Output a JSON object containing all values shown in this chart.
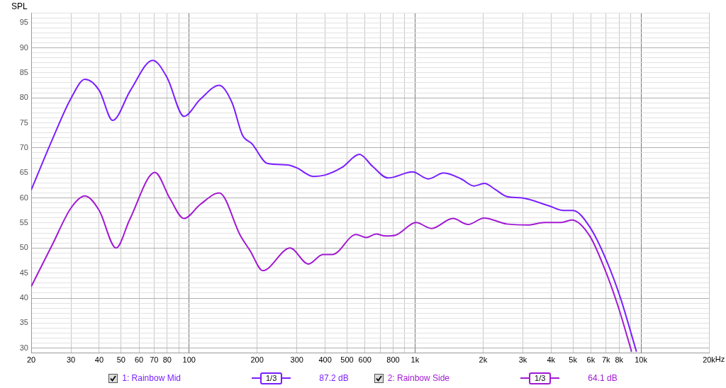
{
  "chart_data": {
    "type": "line",
    "ylabel": "SPL",
    "xlabel": "Hz",
    "log": "x",
    "grid": true,
    "legend": "bottom",
    "marker": "none",
    "line_style": "solid",
    "xlim": [
      20,
      20000
    ],
    "ylim": [
      29,
      97
    ],
    "xticks": [
      20,
      30,
      40,
      50,
      60,
      70,
      80,
      {
        "value": 90,
        "label": null
      },
      100,
      200,
      300,
      400,
      500,
      600,
      {
        "value": 700,
        "label": null
      },
      800,
      {
        "value": 900,
        "label": null
      },
      {
        "value": 1000,
        "label": "1k"
      },
      {
        "value": 2000,
        "label": "2k"
      },
      {
        "value": 3000,
        "label": "3k"
      },
      {
        "value": 4000,
        "label": "4k"
      },
      {
        "value": 5000,
        "label": "5k"
      },
      {
        "value": 6000,
        "label": "6k"
      },
      {
        "value": 7000,
        "label": "7k"
      },
      {
        "value": 8000,
        "label": "8k"
      },
      {
        "value": 9000,
        "label": null
      },
      {
        "value": 10000,
        "label": "10k"
      },
      {
        "value": 20000,
        "label": "20k"
      }
    ],
    "yticks": [
      {
        "value": 29,
        "label": null
      },
      30,
      {
        "value": 31,
        "label": null
      },
      {
        "value": 32,
        "label": null
      },
      {
        "value": 33,
        "label": null
      },
      {
        "value": 34,
        "label": null
      },
      35,
      {
        "value": 36,
        "label": null
      },
      {
        "value": 37,
        "label": null
      },
      {
        "value": 38,
        "label": null
      },
      {
        "value": 39,
        "label": null
      },
      40,
      {
        "value": 41,
        "label": null
      },
      {
        "value": 42,
        "label": null
      },
      {
        "value": 43,
        "label": null
      },
      {
        "value": 44,
        "label": null
      },
      45,
      {
        "value": 46,
        "label": null
      },
      {
        "value": 47,
        "label": null
      },
      {
        "value": 48,
        "label": null
      },
      {
        "value": 49,
        "label": null
      },
      50,
      {
        "value": 51,
        "label": null
      },
      {
        "value": 52,
        "label": null
      },
      {
        "value": 53,
        "label": null
      },
      {
        "value": 54,
        "label": null
      },
      55,
      {
        "value": 56,
        "label": null
      },
      {
        "value": 57,
        "label": null
      },
      {
        "value": 58,
        "label": null
      },
      {
        "value": 59,
        "label": null
      },
      60,
      {
        "value": 61,
        "label": null
      },
      {
        "value": 62,
        "label": null
      },
      {
        "value": 63,
        "label": null
      },
      {
        "value": 64,
        "label": null
      },
      65,
      {
        "value": 66,
        "label": null
      },
      {
        "value": 67,
        "label": null
      },
      {
        "value": 68,
        "label": null
      },
      {
        "value": 69,
        "label": null
      },
      70,
      {
        "value": 71,
        "label": null
      },
      {
        "value": 72,
        "label": null
      },
      {
        "value": 73,
        "label": null
      },
      {
        "value": 74,
        "label": null
      },
      75,
      {
        "value": 76,
        "label": null
      },
      {
        "value": 77,
        "label": null
      },
      {
        "value": 78,
        "label": null
      },
      {
        "value": 79,
        "label": null
      },
      80,
      {
        "value": 81,
        "label": null
      },
      {
        "value": 82,
        "label": null
      },
      {
        "value": 83,
        "label": null
      },
      {
        "value": 84,
        "label": null
      },
      85,
      {
        "value": 86,
        "label": null
      },
      {
        "value": 87,
        "label": null
      },
      {
        "value": 88,
        "label": null
      },
      {
        "value": 89,
        "label": null
      },
      90,
      {
        "value": 91,
        "label": null
      },
      {
        "value": 92,
        "label": null
      },
      {
        "value": 93,
        "label": null
      },
      {
        "value": 94,
        "label": null
      },
      95,
      {
        "value": 96,
        "label": null
      },
      {
        "value": 97,
        "label": null
      }
    ],
    "annotations": [
      "1/3",
      "87.2 dB",
      "1/3",
      "64.1 dB"
    ],
    "series": [
      {
        "name": "1: Rainbow Mid",
        "color": "#7b1fff",
        "x": [
          20,
          24.7,
          30,
          34.6,
          40,
          45.9,
          55,
          69,
          80,
          94.9,
          112,
          136,
          155,
          172,
          190,
          222,
          273,
          300,
          355,
          401,
          475,
          568,
          649,
          759,
          976,
          1144,
          1339,
          1600,
          1826,
          2025,
          2265,
          2545,
          2975,
          3937,
          4532,
          4997,
          5937,
          7022,
          8105,
          9550
        ],
        "values": [
          61.6,
          71.5,
          79.9,
          83.7,
          81.5,
          75.5,
          81.5,
          87.5,
          84.0,
          76.3,
          79.7,
          82.5,
          79.0,
          72.6,
          70.8,
          66.9,
          66.6,
          66.0,
          64.3,
          64.6,
          66.1,
          68.7,
          66.3,
          64.0,
          65.2,
          63.8,
          65.0,
          63.8,
          62.4,
          62.9,
          61.7,
          60.3,
          60.0,
          58.4,
          57.5,
          57.5,
          54.2,
          47.6,
          40.1,
          29.3
        ]
      },
      {
        "name": "2: Rainbow Side",
        "color": "#a21ad2",
        "x": [
          20,
          24.7,
          30,
          34.6,
          40,
          47.5,
          54.6,
          70.6,
          82.2,
          94.9,
          112,
          136,
          169,
          186,
          212,
          280,
          337,
          391,
          431,
          548,
          610,
          673,
          740,
          823,
          1010,
          1183,
          1471,
          1717,
          2020,
          2545,
          3168,
          3737,
          4437,
          4939,
          5937,
          6843,
          7926,
          9090
        ],
        "values": [
          42.3,
          50.5,
          58.0,
          60.4,
          57.5,
          50.0,
          55.7,
          65.1,
          59.9,
          55.9,
          58.7,
          61.0,
          52.4,
          49.5,
          45.5,
          50.0,
          46.8,
          48.7,
          48.7,
          52.7,
          52.1,
          52.8,
          52.4,
          52.6,
          55.1,
          53.9,
          55.9,
          54.7,
          56.0,
          54.8,
          54.6,
          55.1,
          55.1,
          55.6,
          52.4,
          46.3,
          38.3,
          29.3
        ]
      }
    ]
  }
}
